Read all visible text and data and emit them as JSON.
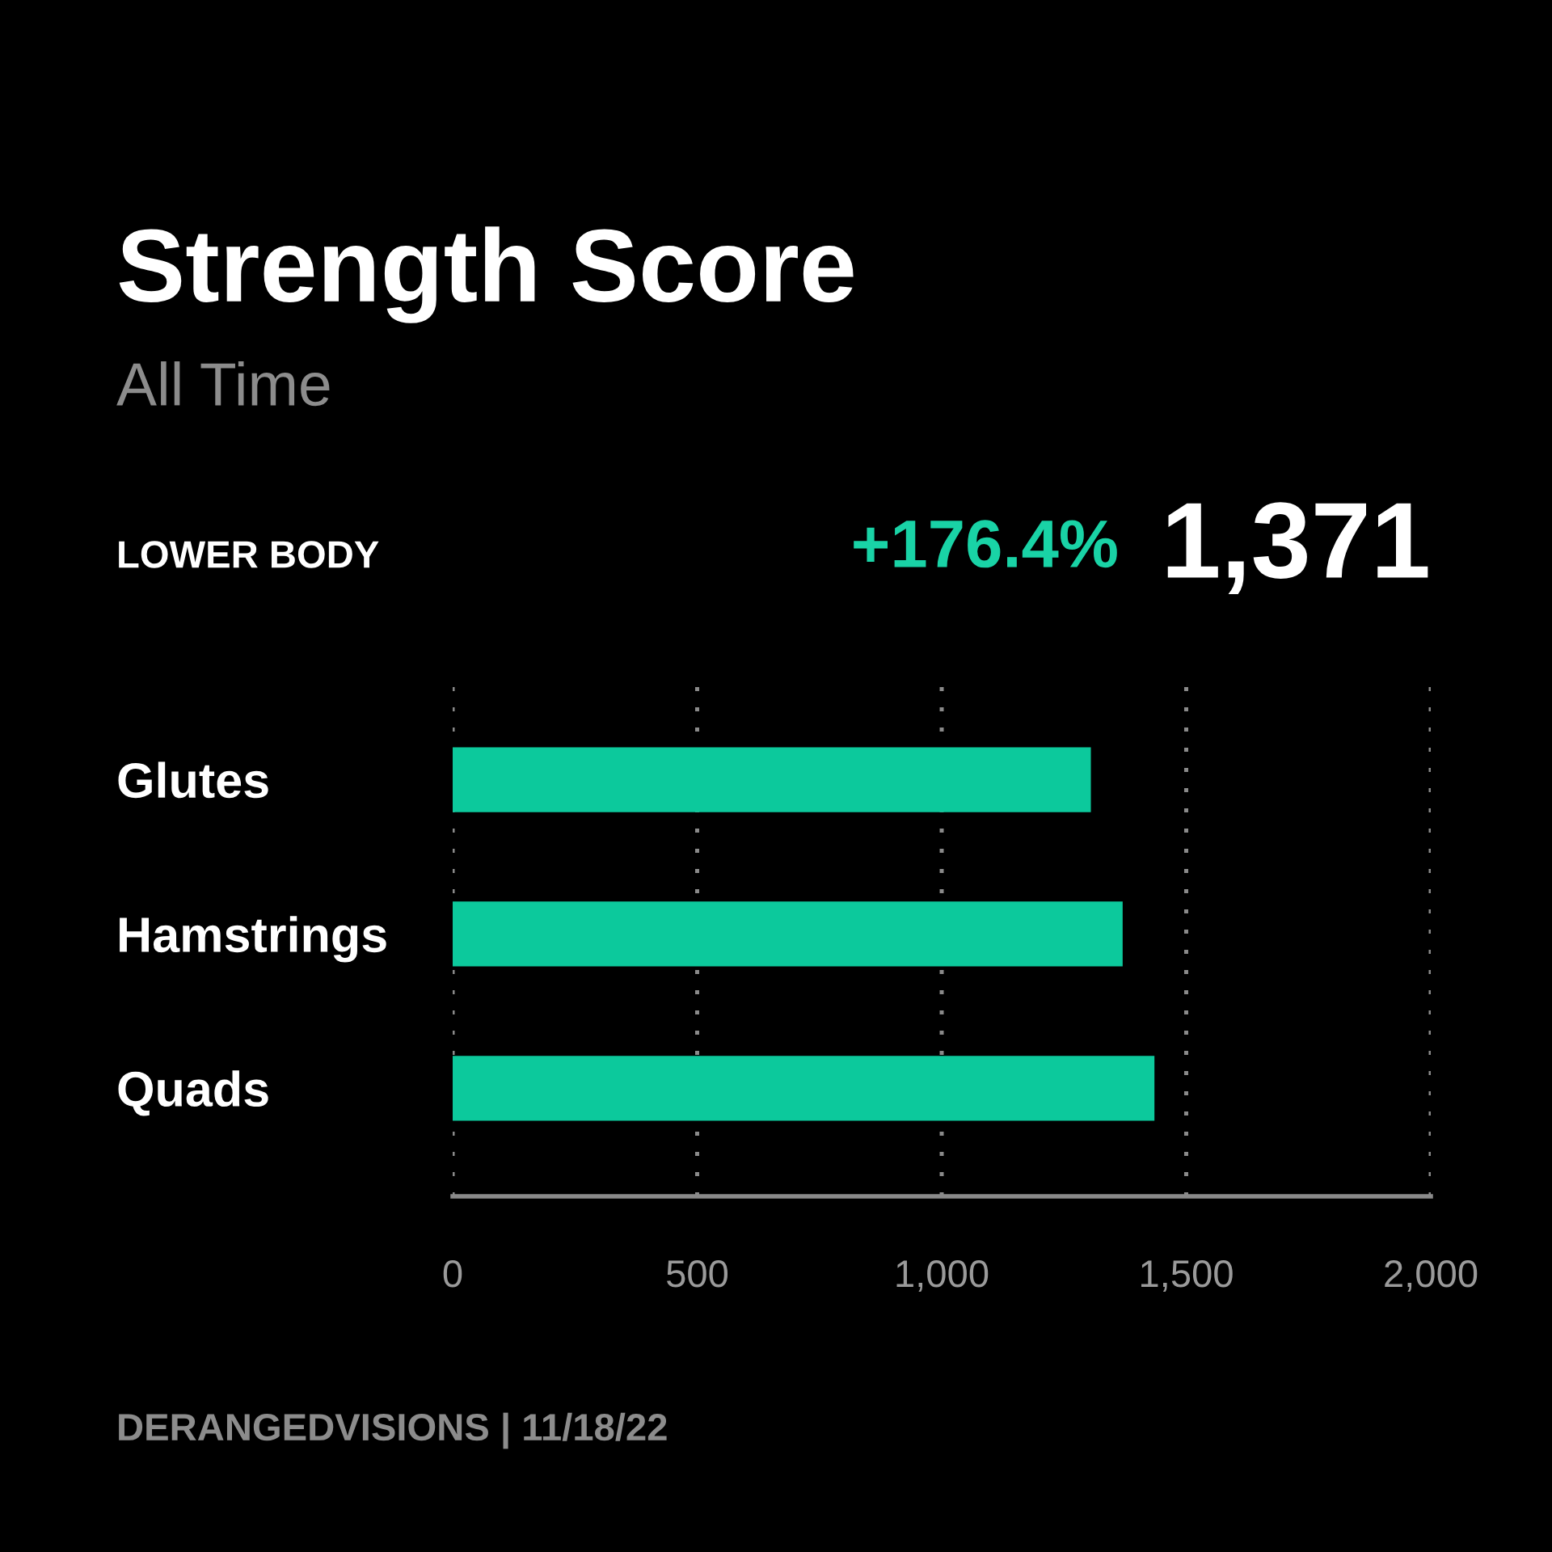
{
  "chart_data": {
    "type": "bar",
    "orientation": "horizontal",
    "title": "Strength Score",
    "subtitle": "All Time",
    "categories": [
      "Glutes",
      "Hamstrings",
      "Quads"
    ],
    "values": [
      1305,
      1370,
      1435
    ],
    "color": "#0cc99c",
    "xlim": [
      0,
      2000
    ],
    "xticks": [
      0,
      {
        "value": 500,
        "label": "500"
      },
      {
        "value": 1000,
        "label": "1,000"
      },
      {
        "value": 1500,
        "label": "1,500"
      },
      {
        "value": 2000,
        "label": "2,000"
      }
    ],
    "grid": "x",
    "annotations": [
      "LOWER BODY",
      "+176.4%",
      "1,371",
      "DERANGEDVISIONS | 11/18/22"
    ]
  }
}
